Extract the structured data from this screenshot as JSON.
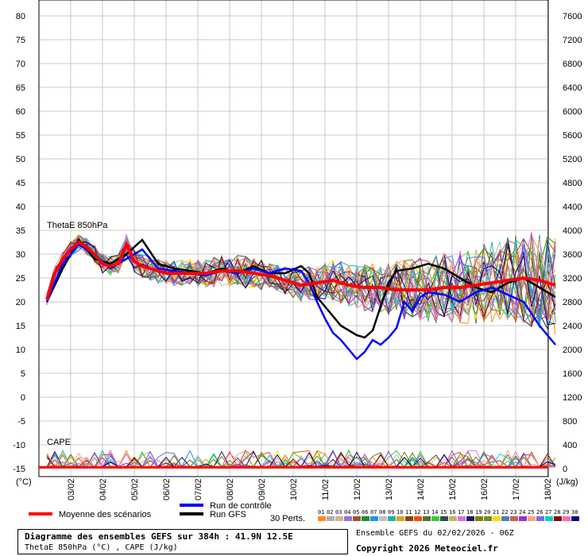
{
  "chart_data": {
    "type": "line",
    "left_axis": {
      "unit_label": "(°C)",
      "ticks": [
        80,
        75,
        70,
        65,
        60,
        55,
        50,
        45,
        40,
        35,
        30,
        25,
        20,
        15,
        10,
        5,
        0,
        -5,
        -10,
        -15
      ],
      "range": [
        -15,
        80
      ]
    },
    "right_axis": {
      "unit_label": "(J/kg)",
      "ticks": [
        7600,
        7200,
        6800,
        6400,
        6000,
        5600,
        5200,
        4800,
        4400,
        4000,
        3600,
        3200,
        2800,
        2400,
        2000,
        1600,
        1200,
        800,
        400,
        0
      ],
      "range": [
        0,
        7600
      ]
    },
    "x_labels": [
      "03/02",
      "04/02",
      "05/02",
      "06/02",
      "07/02",
      "08/02",
      "09/02",
      "10/02",
      "11/02",
      "12/02",
      "13/02",
      "14/02",
      "15/02",
      "16/02",
      "17/02",
      "18/02"
    ],
    "panel_labels": {
      "thetae": "ThetaE 850hPa",
      "cape": "CAPE"
    },
    "legend": {
      "mean": "Moyenne des scénarios",
      "control": "Run de contrôle",
      "gfs": "Run GFS",
      "perts": "30 Perts.",
      "member_numbers": [
        "01",
        "02",
        "03",
        "04",
        "05",
        "06",
        "07",
        "08",
        "09",
        "10",
        "11",
        "12",
        "13",
        "14",
        "15",
        "16",
        "17",
        "18",
        "19",
        "20",
        "21",
        "22",
        "23",
        "24",
        "25",
        "26",
        "27",
        "28",
        "29",
        "30"
      ],
      "member_colors": [
        "#ff8c1a",
        "#b0b0b0",
        "#d2b48c",
        "#9370db",
        "#a0522d",
        "#228b22",
        "#1e90ff",
        "#c0c0c0",
        "#20b2aa",
        "#daa520",
        "#8b4513",
        "#ff4500",
        "#556b2f",
        "#32cd32",
        "#2f4f4f",
        "#bdb76b",
        "#da70d6",
        "#191970",
        "#808000",
        "#6b8e23",
        "#ffd700",
        "#4682b4",
        "#cd5c5c",
        "#9932cc",
        "#ffa07a",
        "#7b68ee",
        "#00ced1",
        "#8b0000",
        "#ff69b4",
        "#000080"
      ]
    },
    "series": [
      {
        "name": "Moyenne des scénarios",
        "color": "#ff0000",
        "panel": "thetae",
        "x": [
          0,
          0.25,
          0.5,
          0.75,
          1,
          1.25,
          1.5,
          1.75,
          2,
          2.25,
          2.5,
          2.75,
          3,
          3.25,
          3.5,
          3.75,
          4,
          4.5,
          5,
          5.5,
          6,
          6.5,
          7,
          7.5,
          8,
          8.5,
          9,
          9.5,
          10,
          10.5,
          11,
          11.5,
          12,
          12.5,
          13,
          13.5,
          14,
          14.5,
          15,
          15.5,
          16
        ],
        "y": [
          20.5,
          26,
          29,
          31,
          32.5,
          31.5,
          30,
          28,
          27.5,
          28,
          32,
          28.5,
          27.5,
          27,
          26.5,
          26,
          26,
          26,
          26,
          26.5,
          26.5,
          26,
          25.5,
          24.5,
          23.5,
          24,
          24.5,
          23.5,
          23,
          23,
          22.5,
          22.5,
          22.5,
          23,
          23,
          23.5,
          24,
          24.5,
          25,
          24.5,
          23.5
        ]
      },
      {
        "name": "Run de contrôle",
        "color": "#0000ff",
        "panel": "thetae",
        "x": [
          0,
          0.5,
          1,
          1.5,
          2,
          2.5,
          3,
          3.5,
          4,
          4.5,
          5,
          5.5,
          6,
          6.5,
          7,
          7.5,
          8,
          8.25,
          8.5,
          8.75,
          9,
          9.25,
          9.5,
          9.75,
          10,
          10.25,
          10.5,
          10.75,
          11,
          11.25,
          11.5,
          11.75,
          12,
          12.5,
          13,
          13.5,
          14,
          14.5,
          15,
          15.5,
          16
        ],
        "y": [
          20,
          28,
          32,
          30,
          27,
          29,
          31,
          27,
          26.5,
          26,
          25.5,
          26.5,
          26,
          27,
          26,
          27,
          26.5,
          24,
          20,
          16.5,
          13.5,
          12,
          10,
          8,
          9.5,
          12,
          11,
          12.5,
          14.5,
          20,
          18,
          21,
          22,
          21.5,
          20,
          22,
          23,
          21.5,
          20,
          15,
          11
        ]
      },
      {
        "name": "Run GFS",
        "color": "#000000",
        "panel": "thetae",
        "x": [
          0,
          0.5,
          1,
          1.5,
          2,
          2.5,
          3,
          3.5,
          4,
          4.5,
          5,
          5.5,
          6,
          6.5,
          7,
          7.5,
          8,
          8.25,
          8.5,
          8.75,
          9,
          9.25,
          9.5,
          9.75,
          10,
          10.25,
          10.5,
          10.75,
          11,
          11.5,
          12,
          12.5,
          13,
          13.5,
          14,
          14.5,
          15,
          15.5,
          16
        ],
        "y": [
          20,
          27,
          33,
          29,
          28,
          30,
          33,
          28,
          27,
          26.5,
          26,
          27,
          26,
          27.5,
          26,
          26,
          27.5,
          26,
          21,
          19,
          17,
          15,
          14,
          13,
          12.5,
          14,
          19,
          24,
          26.5,
          27,
          28,
          27,
          25,
          23,
          22,
          24,
          25,
          23,
          21
        ]
      }
    ]
  },
  "caption": {
    "title": "Diagramme des ensembles GEFS sur 384h : 41.9N 12.5E",
    "subtitle": "ThetaE 850hPa (°C) , CAPE (J/kg)"
  },
  "credit": {
    "run": "Ensemble GEFS du 02/02/2026 - 06Z",
    "copyright": "Copyright 2026 Meteociel.fr"
  }
}
